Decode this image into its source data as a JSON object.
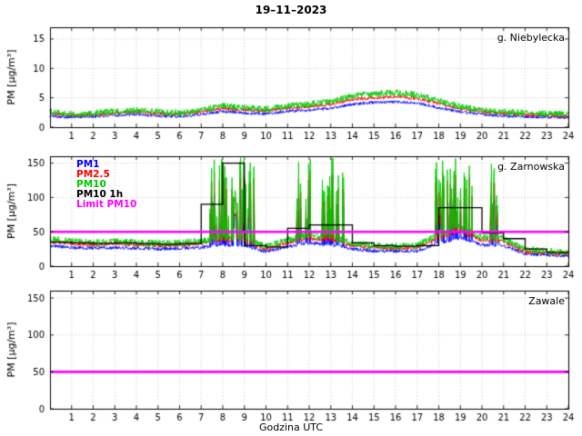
{
  "title": "19–11–2023",
  "xlabel": "Godzina UTC",
  "ylabel": "PM [µg/m³]",
  "xticks": [
    1,
    2,
    3,
    4,
    5,
    6,
    7,
    8,
    9,
    10,
    11,
    12,
    13,
    14,
    15,
    16,
    17,
    18,
    19,
    20,
    21,
    22,
    23,
    24
  ],
  "legend": [
    {
      "label": "PM1",
      "color": "#0000ff"
    },
    {
      "label": "PM2.5",
      "color": "#ff0000"
    },
    {
      "label": "PM10",
      "color": "#00c800"
    },
    {
      "label": "PM10 1h",
      "color": "#000000"
    },
    {
      "label": "Limit PM10",
      "color": "#ff00ff"
    }
  ],
  "chart_data": [
    {
      "type": "line",
      "station": "g. Niebylecka",
      "ylim": [
        0,
        17
      ],
      "yticks": [
        0,
        5,
        10,
        15
      ],
      "clip_min": 0.3,
      "series": [
        {
          "name": "PM1",
          "color": "#0000ff",
          "noise": 0.25,
          "event_scale": 0,
          "hourly": [
            1.9,
            1.7,
            1.8,
            2.0,
            2.2,
            1.9,
            1.8,
            2.2,
            2.7,
            2.4,
            2.3,
            2.7,
            2.9,
            3.2,
            3.9,
            4.2,
            4.3,
            4.1,
            3.3,
            2.6,
            2.2,
            1.9,
            1.8,
            1.7,
            1.6
          ]
        },
        {
          "name": "PM2.5",
          "color": "#ff0000",
          "noise": 0.3,
          "event_scale": 0,
          "hourly": [
            2.3,
            2.0,
            2.1,
            2.4,
            2.6,
            2.3,
            2.2,
            2.6,
            3.2,
            2.9,
            2.8,
            3.2,
            3.5,
            3.9,
            4.7,
            5.0,
            5.2,
            4.9,
            4.0,
            3.1,
            2.6,
            2.3,
            2.1,
            2.0,
            1.9
          ]
        },
        {
          "name": "PM10",
          "color": "#00c800",
          "noise": 0.55,
          "event_scale": 0,
          "hourly": [
            2.6,
            2.2,
            2.4,
            2.7,
            2.9,
            2.6,
            2.4,
            2.9,
            3.6,
            3.3,
            3.1,
            3.6,
            3.9,
            4.4,
            5.3,
            5.7,
            5.9,
            5.5,
            4.5,
            3.5,
            2.9,
            2.6,
            2.4,
            2.3,
            2.2
          ]
        }
      ]
    },
    {
      "type": "line",
      "station": "g. Zarnowska",
      "ylim": [
        0,
        160
      ],
      "yticks": [
        0,
        50,
        100,
        150
      ],
      "clip_min": 2,
      "limit": 50,
      "limit_color": "#ff00ff",
      "events": [
        {
          "from": 7.35,
          "to": 9.45,
          "prob": 0.45,
          "min": 15,
          "max": 125
        },
        {
          "from": 11.35,
          "to": 12.1,
          "prob": 0.35,
          "min": 10,
          "max": 115
        },
        {
          "from": 12.6,
          "to": 13.6,
          "prob": 0.3,
          "min": 10,
          "max": 115
        },
        {
          "from": 17.85,
          "to": 19.55,
          "prob": 0.4,
          "min": 10,
          "max": 110
        },
        {
          "from": 20.35,
          "to": 20.75,
          "prob": 0.45,
          "min": 20,
          "max": 115
        }
      ],
      "series": [
        {
          "name": "PM1",
          "color": "#0000ff",
          "noise": 2.5,
          "event_scale": 0.65,
          "hourly": [
            30,
            27,
            26,
            27,
            26,
            25,
            26,
            27,
            31,
            30,
            21,
            28,
            34,
            31,
            25,
            22,
            22,
            22,
            34,
            41,
            31,
            30,
            18,
            16,
            15
          ]
        },
        {
          "name": "PM2.5",
          "color": "#ff0000",
          "noise": 3,
          "event_scale": 0.85,
          "hourly": [
            36,
            33,
            31,
            33,
            31,
            30,
            31,
            33,
            38,
            36,
            25,
            34,
            41,
            38,
            30,
            27,
            26,
            27,
            41,
            50,
            38,
            36,
            21,
            19,
            18
          ]
        },
        {
          "name": "PM10",
          "color": "#00c800",
          "noise": 5,
          "event_scale": 1.0,
          "hourly": [
            40,
            36,
            34,
            36,
            34,
            33,
            34,
            36,
            42,
            40,
            28,
            38,
            46,
            42,
            33,
            30,
            29,
            30,
            46,
            56,
            42,
            40,
            24,
            22,
            20
          ]
        }
      ],
      "step": {
        "name": "PM10 1h",
        "color": "#000000",
        "hourly": [
          35,
          34,
          33,
          34,
          33,
          32,
          33,
          90,
          150,
          30,
          28,
          55,
          60,
          60,
          34,
          30,
          29,
          30,
          85,
          85,
          48,
          40,
          25,
          20
        ]
      }
    },
    {
      "type": "line",
      "station": "Zawale",
      "ylim": [
        0,
        160
      ],
      "yticks": [
        0,
        50,
        100,
        150
      ],
      "series": [],
      "limit": 50,
      "limit_color": "#ff00ff"
    }
  ]
}
